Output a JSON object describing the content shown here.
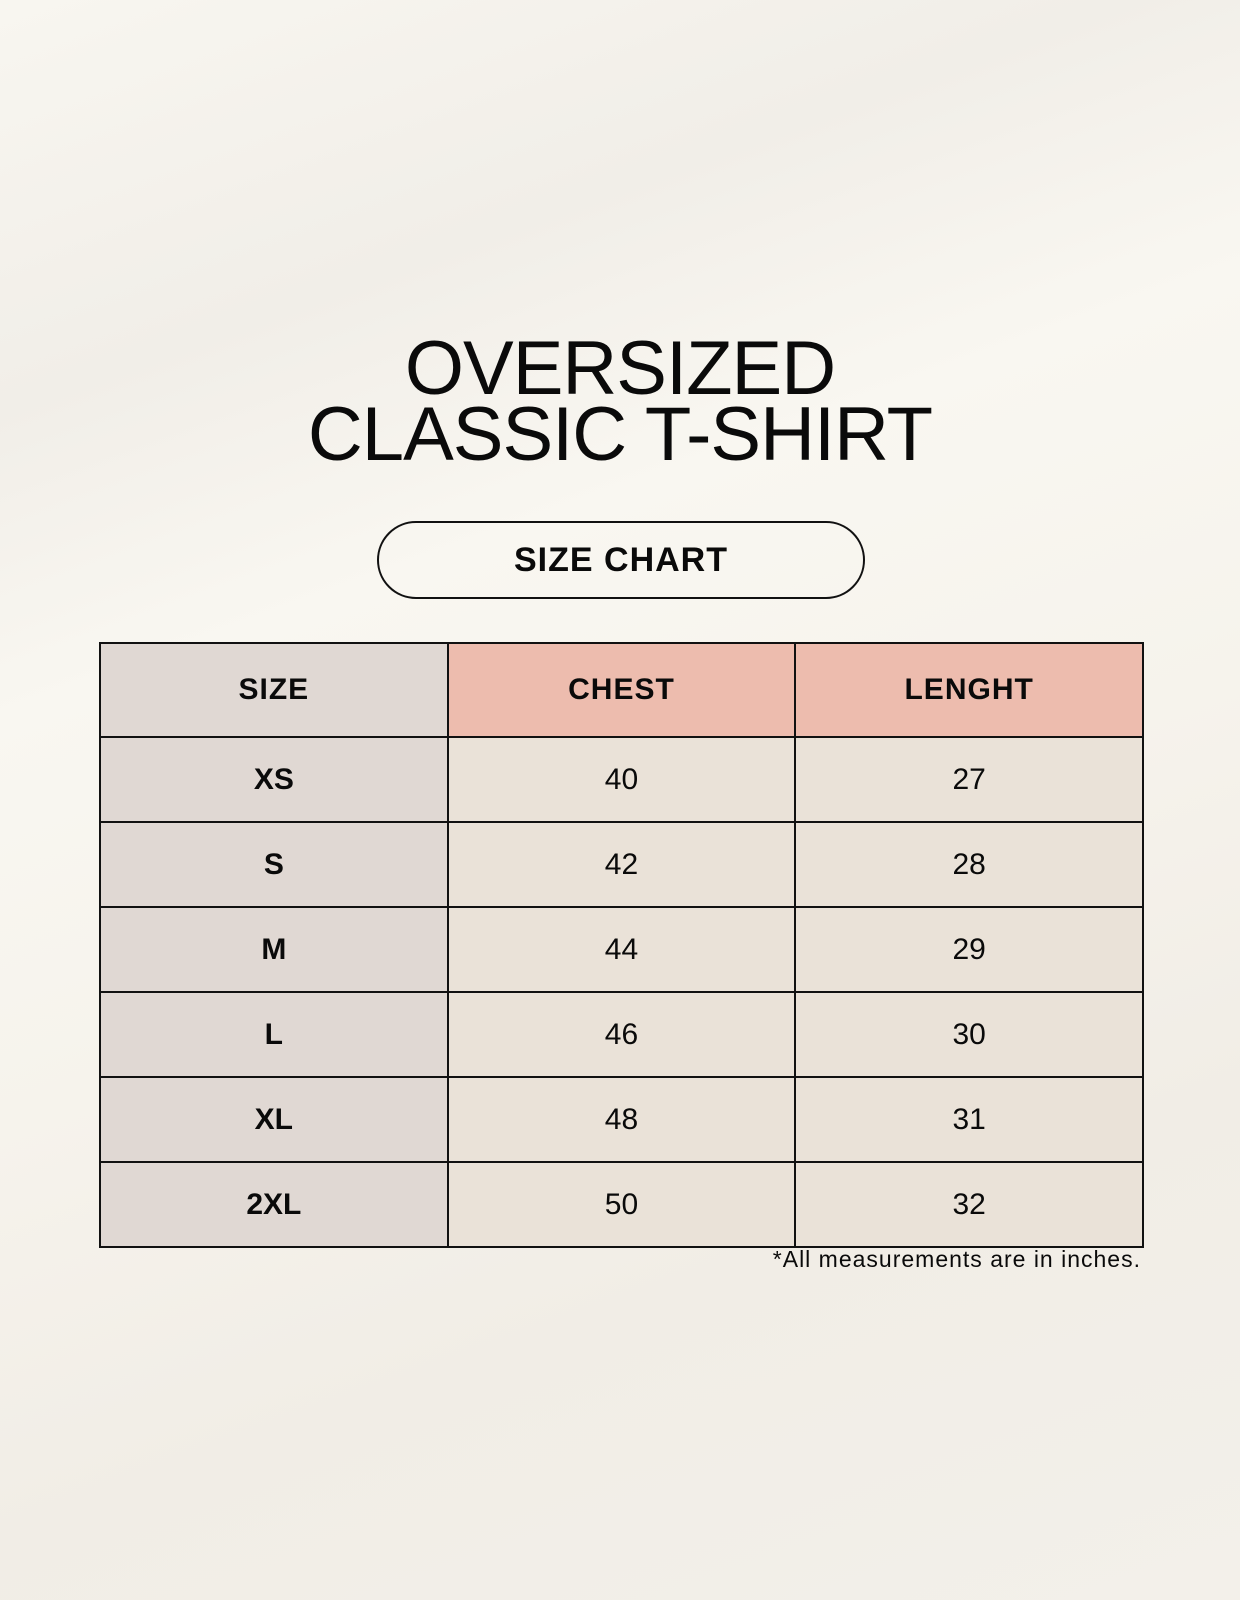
{
  "title_line1": "OVERSIZED",
  "title_line2": "CLASSIC T-SHIRT",
  "subtitle": "SIZE CHART",
  "table": {
    "headers": [
      "SIZE",
      "CHEST",
      "LENGHT"
    ],
    "rows": [
      [
        "XS",
        "40",
        "27"
      ],
      [
        "S",
        "42",
        "28"
      ],
      [
        "M",
        "44",
        "29"
      ],
      [
        "L",
        "46",
        "30"
      ],
      [
        "XL",
        "48",
        "31"
      ],
      [
        "2XL",
        "50",
        "32"
      ]
    ]
  },
  "footnote": "*All measurements are in inches.",
  "colors": {
    "size_column": "#e0d8d3",
    "header_accent": "#edbcae",
    "cell": "#eae2d8"
  }
}
